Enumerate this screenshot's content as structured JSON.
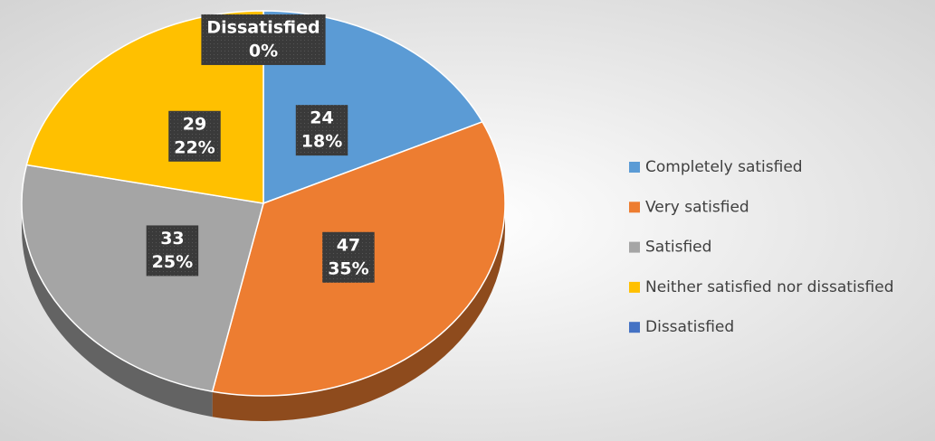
{
  "chart_data": {
    "type": "pie",
    "categories": [
      "Completely satisfied",
      "Very satisfied",
      "Satisfied",
      "Neither satisfied nor dissatisfied",
      "Dissatisfied"
    ],
    "values": [
      24,
      47,
      33,
      29,
      0
    ],
    "percent_labels": [
      "18%",
      "35%",
      "25%",
      "22%",
      "0%"
    ],
    "colors": [
      "#5b9bd5",
      "#ed7d31",
      "#a5a5a5",
      "#ffc000",
      "#4472c4"
    ],
    "legend": "right"
  }
}
